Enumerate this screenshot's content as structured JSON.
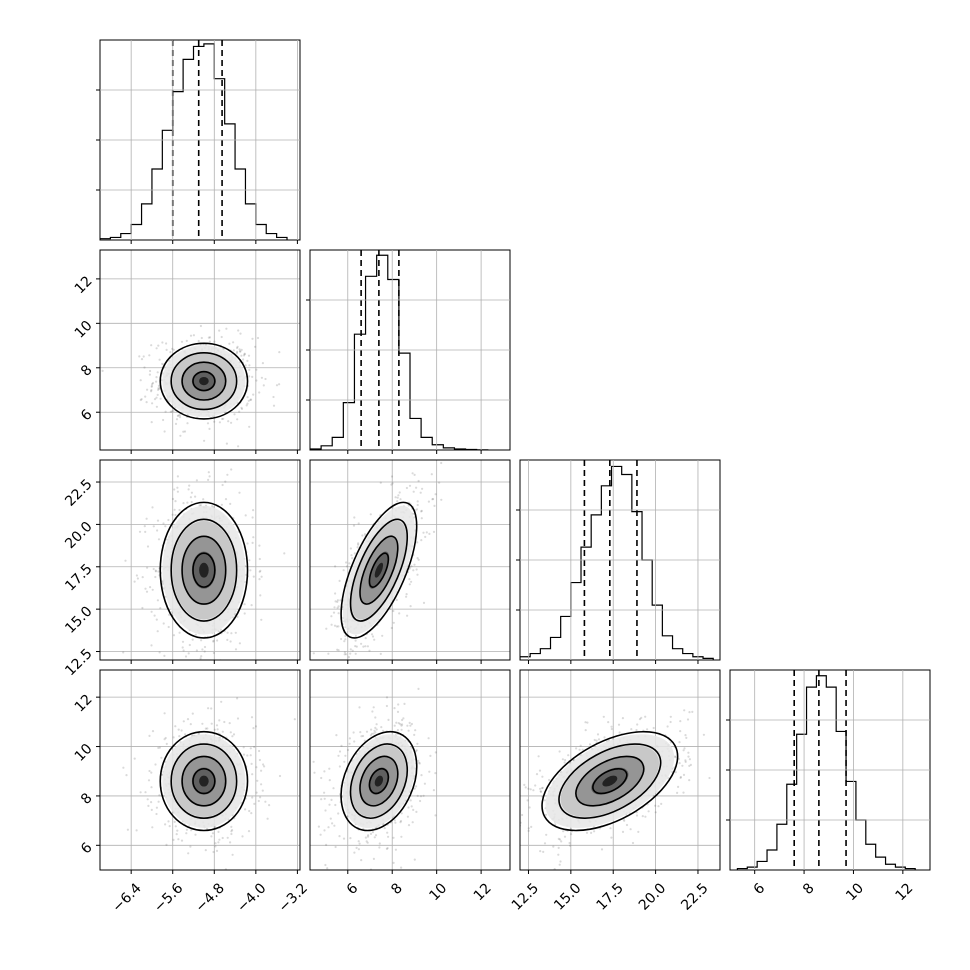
{
  "chart_data": {
    "type": "corner",
    "parameters": [
      {
        "mean": -5.0,
        "sd": 0.42,
        "range": [
          -7.0,
          -3.15
        ],
        "ticks": [
          -6.4,
          -5.6,
          -4.8,
          -4.0,
          -3.2
        ],
        "tick_labels": [
          "−6.4",
          "−5.6",
          "−4.8",
          "−4.0",
          "−3.2"
        ],
        "quantiles": [
          -5.6,
          -5.1,
          -4.65
        ],
        "hist_edges": [
          -7.0,
          -6.8,
          -6.6,
          -6.4,
          -6.2,
          -6.0,
          -5.8,
          -5.6,
          -5.4,
          -5.2,
          -5.0,
          -4.8,
          -4.6,
          -4.4,
          -4.2,
          -4.0,
          -3.8,
          -3.6,
          -3.4
        ],
        "hist_counts": [
          1,
          2,
          5,
          12,
          28,
          55,
          85,
          115,
          140,
          150,
          152,
          125,
          90,
          55,
          28,
          12,
          5,
          2
        ],
        "hist_max": 155
      },
      {
        "mean": 7.4,
        "sd": 0.85,
        "range": [
          4.3,
          13.3
        ],
        "ticks": [
          6,
          8,
          10,
          12
        ],
        "tick_labels": [
          "6",
          "8",
          "10",
          "12"
        ],
        "quantiles": [
          6.6,
          7.4,
          8.3
        ],
        "hist_edges": [
          4.3,
          4.8,
          5.3,
          5.8,
          6.3,
          6.8,
          7.3,
          7.8,
          8.3,
          8.8,
          9.3,
          9.8,
          10.3,
          10.8,
          11.3,
          11.8,
          12.3
        ],
        "hist_counts": [
          1,
          4,
          12,
          45,
          110,
          165,
          185,
          162,
          92,
          30,
          12,
          5,
          2,
          1,
          0.5,
          0.2
        ],
        "hist_max": 190
      },
      {
        "mean": 17.3,
        "sd": 2.0,
        "range": [
          12.0,
          23.8
        ],
        "ticks": [
          12.5,
          15.0,
          17.5,
          20.0,
          22.5
        ],
        "tick_labels": [
          "12.5",
          "15.0",
          "17.5",
          "20.0",
          "22.5"
        ],
        "quantiles": [
          15.8,
          17.3,
          18.9
        ],
        "hist_edges": [
          12.0,
          12.6,
          13.2,
          13.8,
          14.4,
          15.0,
          15.6,
          16.2,
          16.8,
          17.4,
          18.0,
          18.6,
          19.2,
          19.8,
          20.4,
          21.0,
          21.6,
          22.2,
          22.8,
          23.4
        ],
        "hist_counts": [
          2,
          4,
          7,
          14,
          27,
          48,
          70,
          90,
          108,
          120,
          115,
          92,
          62,
          34,
          15,
          7,
          4,
          2,
          1
        ],
        "hist_max": 124
      },
      {
        "mean": 8.6,
        "sd": 1.0,
        "range": [
          5.0,
          13.1
        ],
        "ticks": [
          6,
          8,
          10,
          12
        ],
        "tick_labels": [
          "6",
          "8",
          "10",
          "12"
        ],
        "quantiles": [
          7.6,
          8.6,
          9.7
        ],
        "hist_edges": [
          5.3,
          5.7,
          6.1,
          6.5,
          6.9,
          7.3,
          7.7,
          8.1,
          8.5,
          8.9,
          9.3,
          9.7,
          10.1,
          10.5,
          10.9,
          11.3,
          11.7,
          12.1,
          12.5
        ],
        "hist_counts": [
          1,
          2,
          6,
          14,
          32,
          60,
          95,
          128,
          136,
          128,
          97,
          62,
          35,
          18,
          9,
          4,
          2,
          1
        ],
        "hist_max": 140
      }
    ],
    "correlations": {
      "0_1": 0.0,
      "0_2": 0.0,
      "1_2": 0.65,
      "0_3": 0.0,
      "1_3": 0.3,
      "2_3": 0.5
    },
    "contour_levels_sigma": [
      0.5,
      1.0,
      1.5,
      2.0
    ],
    "grid": true
  }
}
